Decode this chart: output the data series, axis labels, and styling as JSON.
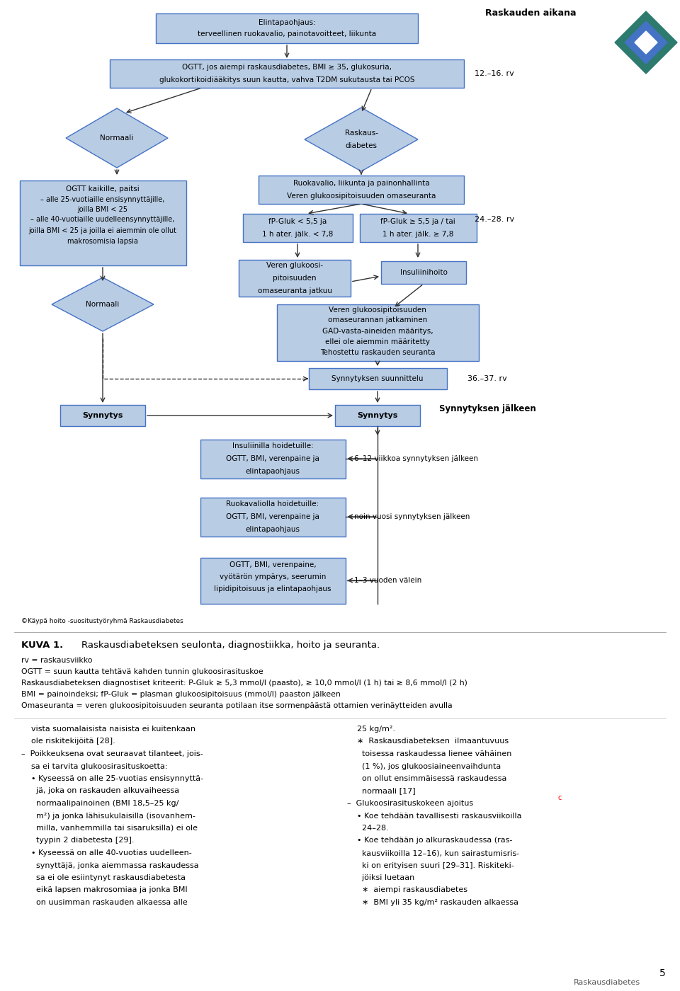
{
  "bg_color": "#ffffff",
  "box_fill": "#b8cce4",
  "box_edge": "#4472c4",
  "title_header": "Raskauden aikana",
  "page_num": "5",
  "footer_text": "Raskausdiabetes",
  "logo_outer_color": "#2d7a6e",
  "logo_inner_color": "#4472c4",
  "arrow_color": "#333333",
  "text_color": "#000000"
}
